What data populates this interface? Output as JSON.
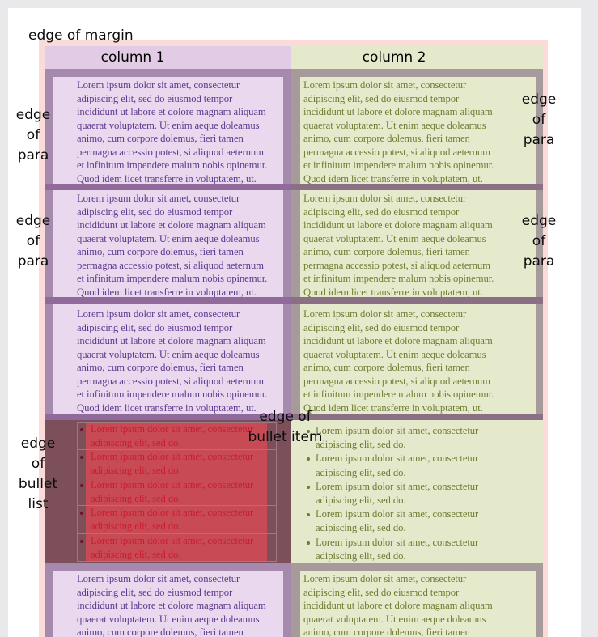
{
  "colors": {
    "canvas_bg": "#e9e9ec",
    "page_bg": "#ffffff",
    "margin_edge_highlight": "#fbdada",
    "column1_bg": "#e2cbe4",
    "column1_para_edge": "#a68aae",
    "column1_para_edge_overlap": "#906a9a",
    "column1_para_bg": "#ead8ee",
    "column1_text": "#5e3a8e",
    "column2_bg": "#e5e9cb",
    "column2_para_edge": "#a79a9a",
    "column2_para_edge_overlap": "#8b7085",
    "column2_para_bg": "#e6eacc",
    "column2_text": "#6f7d35",
    "bullet_list_edge": "#7d4f5a",
    "bullet_item_edge": "#c74a54",
    "bullet_item_text": "#cc1c33"
  },
  "callouts": {
    "margin": "edge of margin",
    "para_left_1": "edge\nof\npara",
    "para_left_2": "edge\nof\npara",
    "para_right_1": "edge\nof\npara",
    "para_right_2": "edge\nof\npara",
    "bullet_list": "edge\nof\nbullet\nlist",
    "bullet_item": "edge of\nbullet item"
  },
  "columns": [
    {
      "header": "column 1",
      "paragraphs": [
        "Lorem ipsum dolor sit amet, consectetur\nadipiscing elit, sed do eiusmod tempor\nincididunt ut labore et dolore magnam aliquam\nquaerat voluptatem. Ut enim aeque doleamus\nanimo, cum corpore dolemus, fieri tamen\npermagna accessio potest, si aliquod aeternum\net infinitum impendere malum nobis opinemur.\nQuod idem licet transferre in voluptatem, ut.",
        "Lorem ipsum dolor sit amet, consectetur\nadipiscing elit, sed do eiusmod tempor\nincididunt ut labore et dolore magnam aliquam\nquaerat voluptatem. Ut enim aeque doleamus\nanimo, cum corpore dolemus, fieri tamen\npermagna accessio potest, si aliquod aeternum\net infinitum impendere malum nobis opinemur.\nQuod idem licet transferre in voluptatem, ut.",
        "Lorem ipsum dolor sit amet, consectetur\nadipiscing elit, sed do eiusmod tempor\nincididunt ut labore et dolore magnam aliquam\nquaerat voluptatem. Ut enim aeque doleamus\nanimo, cum corpore dolemus, fieri tamen\npermagna accessio potest, si aliquod aeternum\net infinitum impendere malum nobis opinemur.\nQuod idem licet transferre in voluptatem, ut.",
        "Lorem ipsum dolor sit amet, consectetur\nadipiscing elit, sed do eiusmod tempor\nincididunt ut labore et dolore magnam aliquam\nquaerat voluptatem. Ut enim aeque doleamus\nanimo, cum corpore dolemus, fieri tamen\npermagna accessio potest, si aliquod aeternum\net infinitum impendere malum nobis opinemur.\nQuod idem licet transferre in voluptatem, ut."
      ],
      "list": {
        "marker": "•",
        "items": [
          "Lorem ipsum dolor sit amet, consectetur\nadipiscing elit, sed do.",
          "Lorem ipsum dolor sit amet, consectetur\nadipiscing elit, sed do.",
          "Lorem ipsum dolor sit amet, consectetur\nadipiscing elit, sed do.",
          "Lorem ipsum dolor sit amet, consectetur\nadipiscing elit, sed do.",
          "Lorem ipsum dolor sit amet, consectetur\nadipiscing elit, sed do."
        ]
      }
    },
    {
      "header": "column 2",
      "paragraphs": [
        "Lorem ipsum dolor sit amet, consectetur\nadipiscing elit, sed do eiusmod tempor\nincididunt ut labore et dolore magnam aliquam\nquaerat voluptatem. Ut enim aeque doleamus\nanimo, cum corpore dolemus, fieri tamen\npermagna accessio potest, si aliquod aeternum\net infinitum impendere malum nobis opinemur.\nQuod idem licet transferre in voluptatem, ut.",
        "Lorem ipsum dolor sit amet, consectetur\nadipiscing elit, sed do eiusmod tempor\nincididunt ut labore et dolore magnam aliquam\nquaerat voluptatem. Ut enim aeque doleamus\nanimo, cum corpore dolemus, fieri tamen\npermagna accessio potest, si aliquod aeternum\net infinitum impendere malum nobis opinemur.\nQuod idem licet transferre in voluptatem, ut.",
        "Lorem ipsum dolor sit amet, consectetur\nadipiscing elit, sed do eiusmod tempor\nincididunt ut labore et dolore magnam aliquam\nquaerat voluptatem. Ut enim aeque doleamus\nanimo, cum corpore dolemus, fieri tamen\npermagna accessio potest, si aliquod aeternum\net infinitum impendere malum nobis opinemur.\nQuod idem licet transferre in voluptatem, ut.",
        "Lorem ipsum dolor sit amet, consectetur\nadipiscing elit, sed do eiusmod tempor\nincididunt ut labore et dolore magnam aliquam\nquaerat voluptatem. Ut enim aeque doleamus\nanimo, cum corpore dolemus, fieri tamen\npermagna accessio potest, si aliquod aeternum\net infinitum impendere malum nobis opinemur.\nQuod idem licet transferre in voluptatem, ut."
      ],
      "list": {
        "marker": "•",
        "items": [
          "Lorem ipsum dolor sit amet, consectetur\nadipiscing elit, sed do.",
          "Lorem ipsum dolor sit amet, consectetur\nadipiscing elit, sed do.",
          "Lorem ipsum dolor sit amet, consectetur\nadipiscing elit, sed do.",
          "Lorem ipsum dolor sit amet, consectetur\nadipiscing elit, sed do.",
          "Lorem ipsum dolor sit amet, consectetur\nadipiscing elit, sed do."
        ]
      }
    }
  ]
}
